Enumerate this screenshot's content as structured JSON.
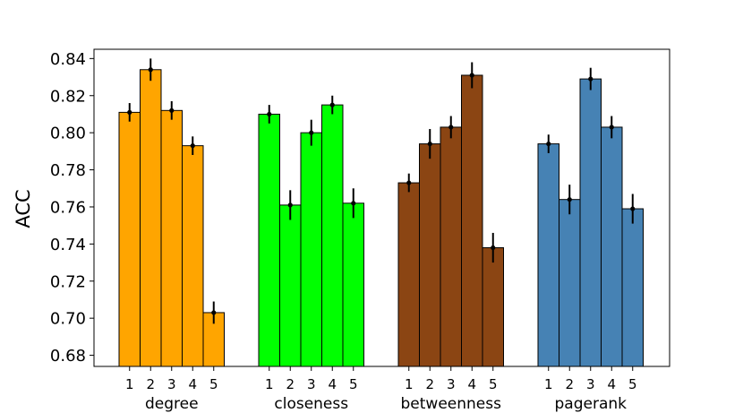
{
  "chart_data": {
    "type": "bar",
    "ylabel": "ACC",
    "xlabel": "",
    "ylim": [
      0.674,
      0.845
    ],
    "yticks": [
      0.68,
      0.7,
      0.72,
      0.74,
      0.76,
      0.78,
      0.8,
      0.82,
      0.84
    ],
    "ytick_labels": [
      "0.68",
      "0.70",
      "0.72",
      "0.74",
      "0.76",
      "0.78",
      "0.80",
      "0.82",
      "0.84"
    ],
    "grid": false,
    "sub_categories": [
      "1",
      "2",
      "3",
      "4",
      "5"
    ],
    "groups": [
      {
        "name": "degree",
        "color": "#FFA500",
        "values": [
          0.811,
          0.834,
          0.812,
          0.793,
          0.703
        ],
        "errors": [
          0.005,
          0.006,
          0.005,
          0.005,
          0.006
        ]
      },
      {
        "name": "closeness",
        "color": "#00FF00",
        "values": [
          0.81,
          0.761,
          0.8,
          0.815,
          0.762
        ],
        "errors": [
          0.005,
          0.008,
          0.007,
          0.005,
          0.008
        ]
      },
      {
        "name": "betweenness",
        "color": "#8B4513",
        "values": [
          0.773,
          0.794,
          0.803,
          0.831,
          0.738
        ],
        "errors": [
          0.005,
          0.008,
          0.006,
          0.007,
          0.008
        ]
      },
      {
        "name": "pagerank",
        "color": "#4682B4",
        "values": [
          0.794,
          0.764,
          0.829,
          0.803,
          0.759
        ],
        "errors": [
          0.005,
          0.008,
          0.006,
          0.006,
          0.008
        ]
      }
    ]
  }
}
